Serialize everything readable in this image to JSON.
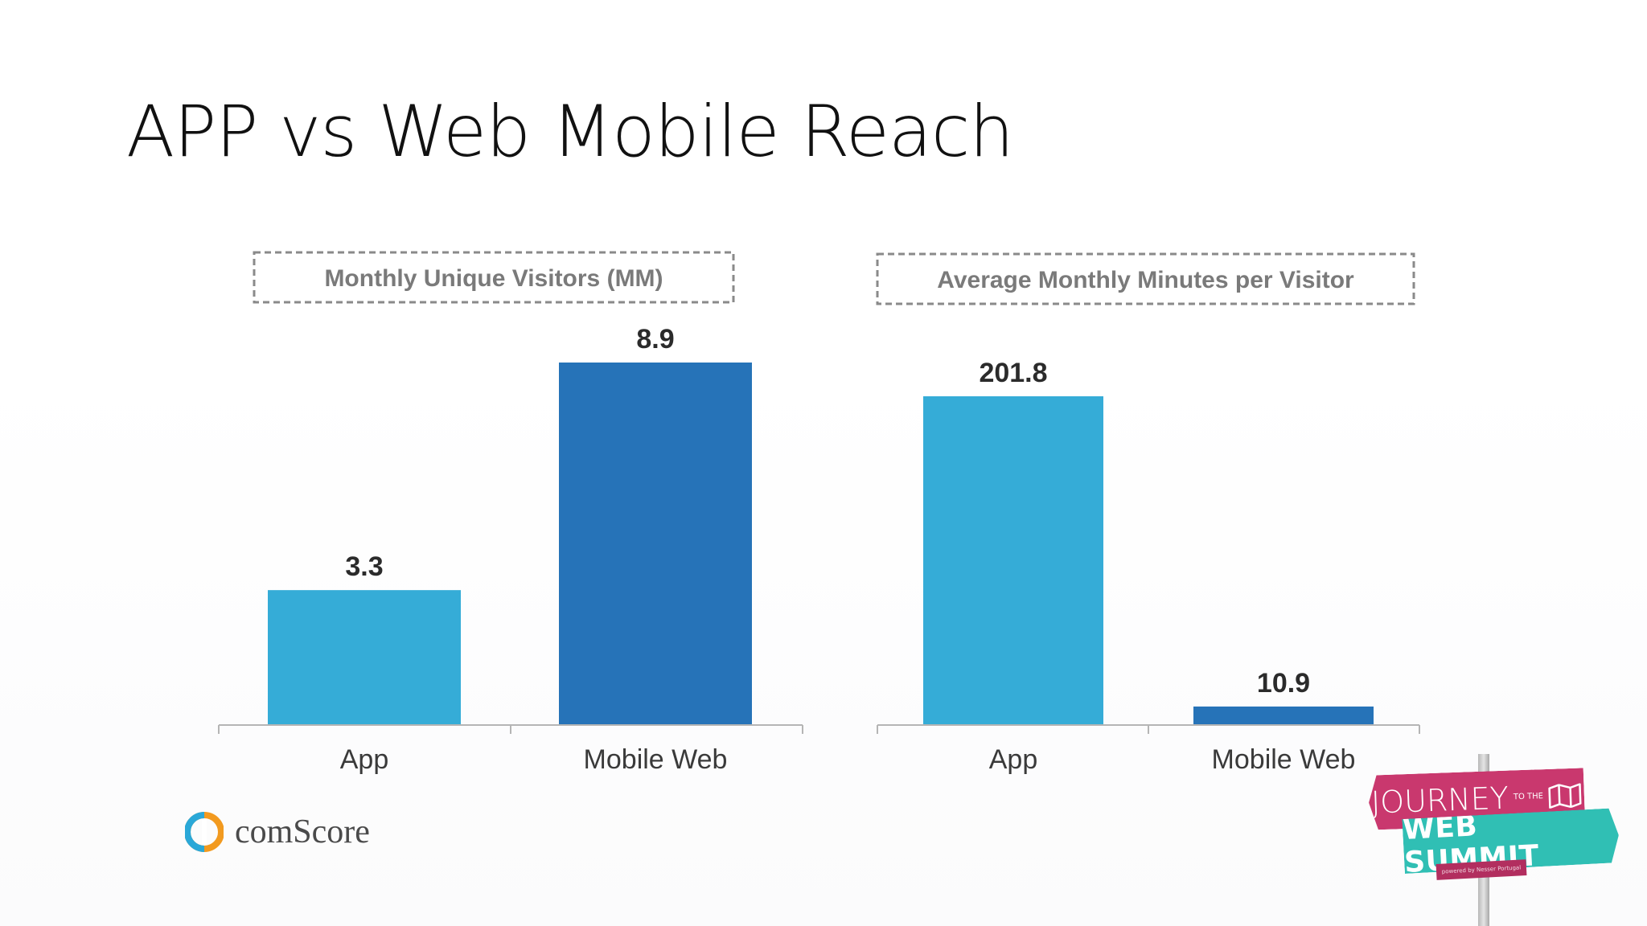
{
  "slide": {
    "title": "APP vs Web Mobile Reach"
  },
  "chart_data": [
    {
      "type": "bar",
      "title": "Monthly Unique Visitors (MM)",
      "categories": [
        "App",
        "Mobile Web"
      ],
      "values": [
        3.3,
        8.9
      ],
      "value_labels": [
        "3.3",
        "8.9"
      ],
      "colors": [
        "#35acd7",
        "#2673b8"
      ],
      "ylim": [
        0,
        8.9
      ],
      "grid": false,
      "legend": "none"
    },
    {
      "type": "bar",
      "title": "Average Monthly Minutes per Visitor",
      "categories": [
        "App",
        "Mobile Web"
      ],
      "values": [
        201.8,
        10.9
      ],
      "value_labels": [
        "201.8",
        "10.9"
      ],
      "colors": [
        "#35acd7",
        "#2673b8"
      ],
      "ylim": [
        0,
        201.8
      ],
      "grid": false,
      "legend": "none"
    }
  ],
  "source_logo": {
    "name": "comScore",
    "text": "comScore"
  },
  "event_sign": {
    "line1": "JOURNEY",
    "line1_small": "TO THE",
    "line2": "WEB SUMMIT",
    "powered": "powered by Nesser Portugal",
    "pink": "#c9386e",
    "teal": "#30bfb4",
    "icon": "map-icon"
  }
}
